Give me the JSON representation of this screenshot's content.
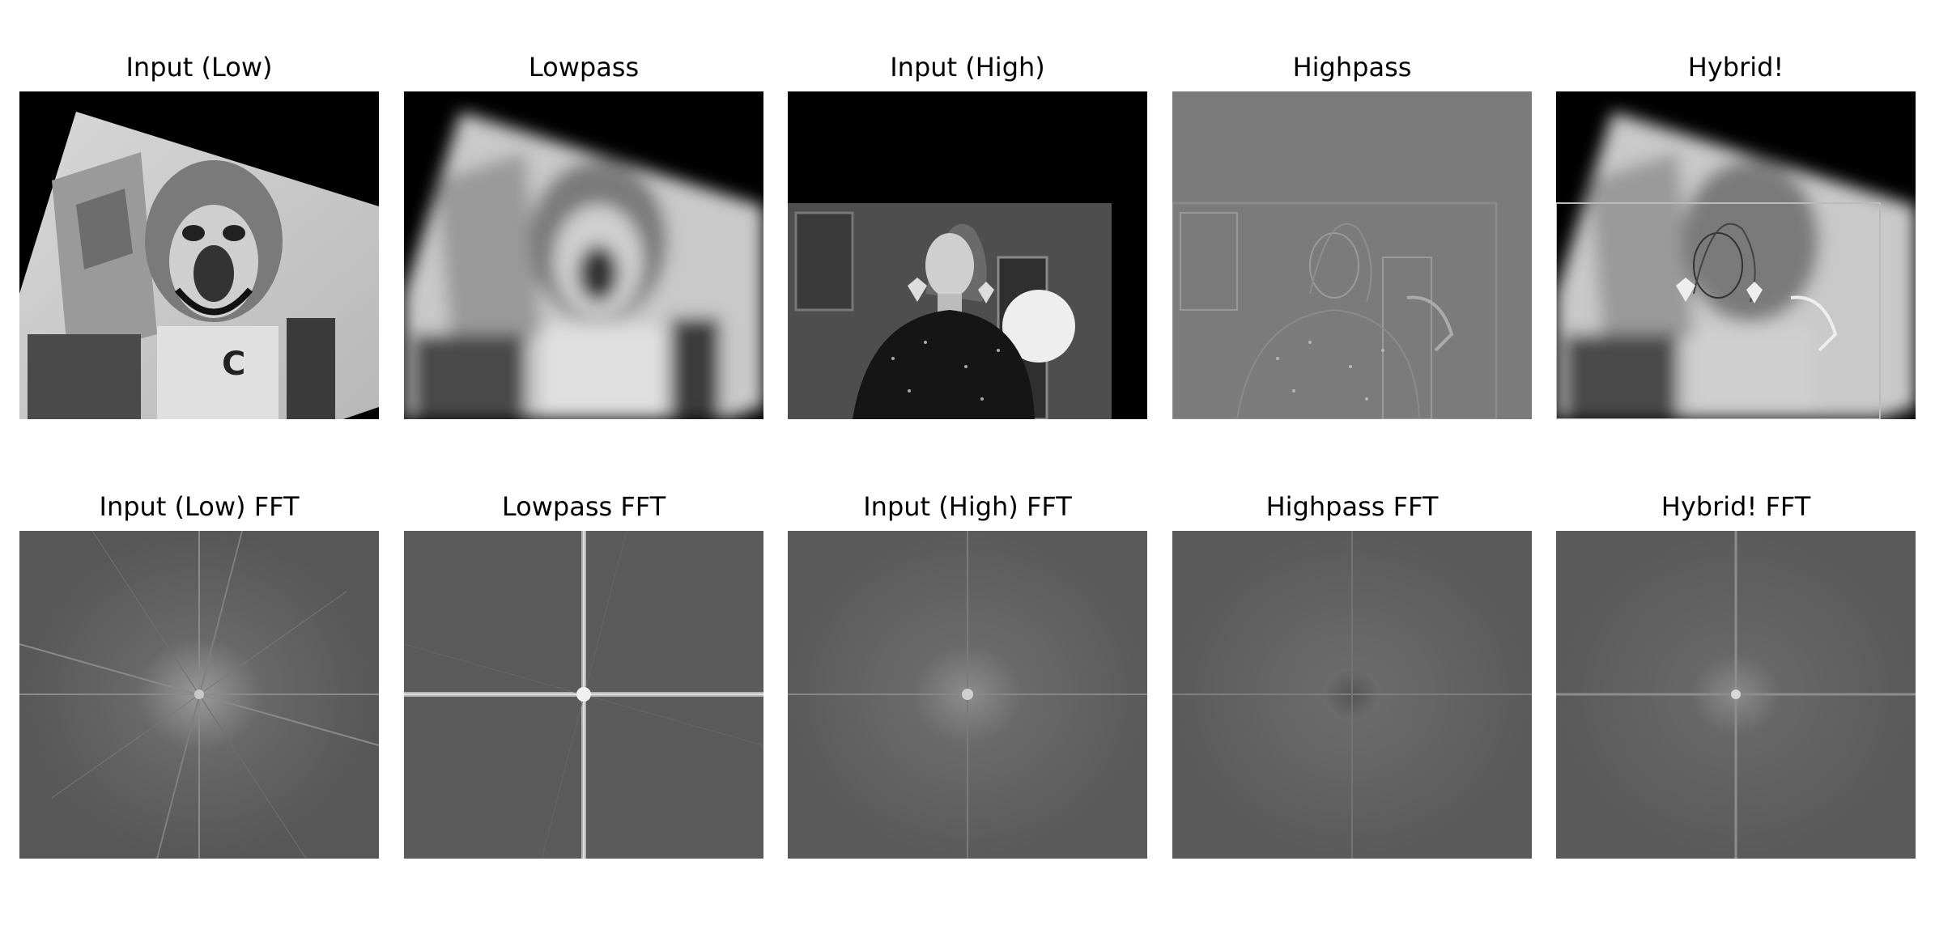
{
  "figure": {
    "rows": [
      {
        "panels": [
          {
            "id": "input-low",
            "title": "Input (Low)",
            "image": "bear-mascot-photo"
          },
          {
            "id": "lowpass",
            "title": "Lowpass",
            "image": "blurred-bear-mascot"
          },
          {
            "id": "input-high",
            "title": "Input (High)",
            "image": "woman-portrait-photo"
          },
          {
            "id": "highpass",
            "title": "Highpass",
            "image": "edge-filtered-portrait"
          },
          {
            "id": "hybrid",
            "title": "Hybrid!",
            "image": "hybrid-image"
          }
        ]
      },
      {
        "panels": [
          {
            "id": "input-low-fft",
            "title": "Input (Low) FFT",
            "image": "fft-spectrum"
          },
          {
            "id": "lowpass-fft",
            "title": "Lowpass FFT",
            "image": "fft-spectrum"
          },
          {
            "id": "input-high-fft",
            "title": "Input (High) FFT",
            "image": "fft-spectrum"
          },
          {
            "id": "highpass-fft",
            "title": "Highpass FFT",
            "image": "fft-spectrum"
          },
          {
            "id": "hybrid-fft",
            "title": "Hybrid! FFT",
            "image": "fft-spectrum"
          }
        ]
      }
    ]
  }
}
